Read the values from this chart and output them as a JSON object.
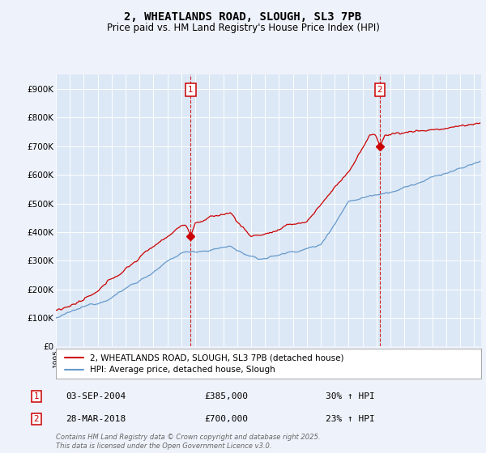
{
  "title": "2, WHEATLANDS ROAD, SLOUGH, SL3 7PB",
  "subtitle": "Price paid vs. HM Land Registry's House Price Index (HPI)",
  "background_color": "#eef2fa",
  "plot_bg_color": "#dce8f5",
  "ylim": [
    0,
    950000
  ],
  "yticks": [
    0,
    100000,
    200000,
    300000,
    400000,
    500000,
    600000,
    700000,
    800000,
    900000
  ],
  "ytick_labels": [
    "£0",
    "£100K",
    "£200K",
    "£300K",
    "£400K",
    "£500K",
    "£600K",
    "£700K",
    "£800K",
    "£900K"
  ],
  "xlim_start": 1995.0,
  "xlim_end": 2025.5,
  "purchase1_year": 2004.67,
  "purchase1_price": 385000,
  "purchase2_year": 2018.24,
  "purchase2_price": 700000,
  "legend_label_red": "2, WHEATLANDS ROAD, SLOUGH, SL3 7PB (detached house)",
  "legend_label_blue": "HPI: Average price, detached house, Slough",
  "annotation1_date": "03-SEP-2004",
  "annotation1_price": "£385,000",
  "annotation1_hpi": "30% ↑ HPI",
  "annotation2_date": "28-MAR-2018",
  "annotation2_price": "£700,000",
  "annotation2_hpi": "23% ↑ HPI",
  "footer": "Contains HM Land Registry data © Crown copyright and database right 2025.\nThis data is licensed under the Open Government Licence v3.0.",
  "red_color": "#cc0000",
  "blue_color": "#6699cc",
  "grid_color": "#ffffff",
  "title_fontsize": 10,
  "subtitle_fontsize": 8.5,
  "tick_fontsize": 7.5,
  "legend_fontsize": 7.5,
  "ann_fontsize": 8,
  "footer_fontsize": 6
}
